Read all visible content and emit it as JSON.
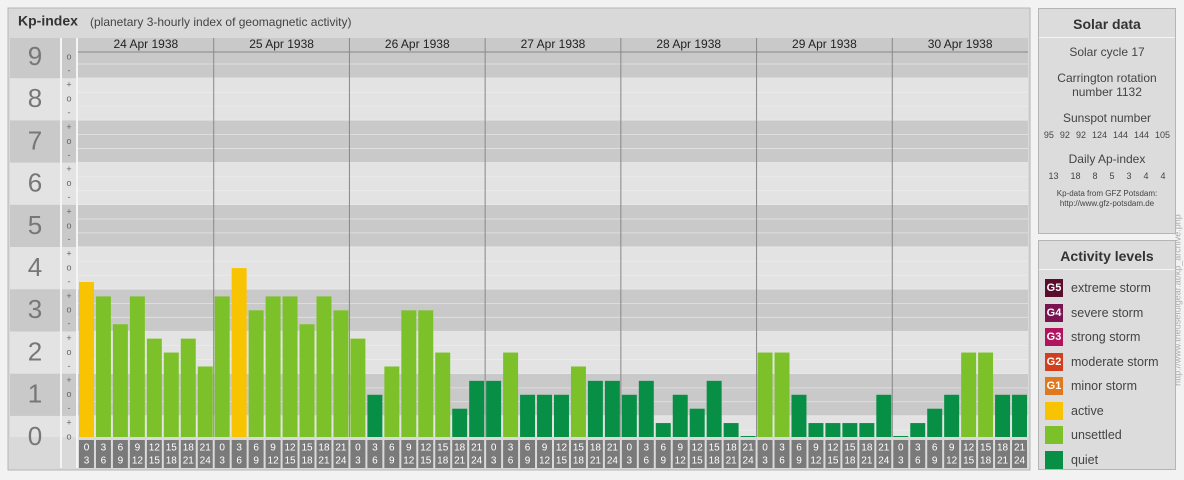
{
  "header": {
    "title": "Kp-index",
    "subtitle": "(planetary 3-hourly index of geomagnetic activity)"
  },
  "chart_data": {
    "type": "bar",
    "ylim": [
      0,
      9
    ],
    "yticks": [
      0,
      1,
      2,
      3,
      4,
      5,
      6,
      7,
      8,
      9
    ],
    "minor_yticks": [
      {
        "value": 0,
        "label": "o"
      },
      {
        "value": 0.33,
        "label": "+"
      },
      {
        "value": 0.67,
        "label": "-"
      },
      {
        "value": 1,
        "label": "o"
      },
      {
        "value": 1.33,
        "label": "+"
      },
      {
        "value": 1.67,
        "label": "-"
      },
      {
        "value": 2,
        "label": "o"
      },
      {
        "value": 2.33,
        "label": "+"
      },
      {
        "value": 2.67,
        "label": "-"
      },
      {
        "value": 3,
        "label": "o"
      },
      {
        "value": 3.33,
        "label": "+"
      },
      {
        "value": 3.67,
        "label": "-"
      },
      {
        "value": 4,
        "label": "o"
      },
      {
        "value": 4.33,
        "label": "+"
      },
      {
        "value": 4.67,
        "label": "-"
      },
      {
        "value": 5,
        "label": "o"
      },
      {
        "value": 5.33,
        "label": "+"
      },
      {
        "value": 5.67,
        "label": "-"
      },
      {
        "value": 6,
        "label": "o"
      },
      {
        "value": 6.33,
        "label": "+"
      },
      {
        "value": 6.67,
        "label": "-"
      },
      {
        "value": 7,
        "label": "o"
      },
      {
        "value": 7.33,
        "label": "+"
      },
      {
        "value": 7.67,
        "label": "-"
      },
      {
        "value": 8,
        "label": "o"
      },
      {
        "value": 8.33,
        "label": "+"
      },
      {
        "value": 8.67,
        "label": "-"
      },
      {
        "value": 9,
        "label": "o"
      }
    ],
    "intervals": [
      [
        0,
        3
      ],
      [
        3,
        6
      ],
      [
        6,
        9
      ],
      [
        9,
        12
      ],
      [
        12,
        15
      ],
      [
        15,
        18
      ],
      [
        18,
        21
      ],
      [
        21,
        24
      ]
    ],
    "days": [
      {
        "date": "24 Apr 1938",
        "values": [
          3.67,
          3.33,
          2.67,
          3.33,
          2.33,
          2,
          2.33,
          1.67
        ],
        "colors": [
          "#f8c300",
          "#7dc12a",
          "#7dc12a",
          "#7dc12a",
          "#7dc12a",
          "#7dc12a",
          "#7dc12a",
          "#7dc12a"
        ]
      },
      {
        "date": "25 Apr 1938",
        "values": [
          3.33,
          4,
          3,
          3.33,
          3.33,
          2.67,
          3.33,
          3
        ],
        "colors": [
          "#7dc12a",
          "#f8c300",
          "#7dc12a",
          "#7dc12a",
          "#7dc12a",
          "#7dc12a",
          "#7dc12a",
          "#7dc12a"
        ]
      },
      {
        "date": "26 Apr 1938",
        "values": [
          2.33,
          1,
          1.67,
          3,
          3,
          2,
          0.67,
          1.33
        ],
        "colors": [
          "#7dc12a",
          "#068f45",
          "#7dc12a",
          "#7dc12a",
          "#7dc12a",
          "#7dc12a",
          "#068f45",
          "#068f45"
        ]
      },
      {
        "date": "27 Apr 1938",
        "values": [
          1.33,
          2,
          1,
          1,
          1,
          1.67,
          1.33,
          1.33
        ],
        "colors": [
          "#068f45",
          "#7dc12a",
          "#068f45",
          "#068f45",
          "#068f45",
          "#7dc12a",
          "#068f45",
          "#068f45"
        ]
      },
      {
        "date": "28 Apr 1938",
        "values": [
          1,
          1.33,
          0.33,
          1,
          0.67,
          1.33,
          0.33,
          0
        ],
        "colors": [
          "#068f45",
          "#068f45",
          "#068f45",
          "#068f45",
          "#068f45",
          "#068f45",
          "#068f45",
          "#068f45"
        ]
      },
      {
        "date": "29 Apr 1938",
        "values": [
          2,
          2,
          1,
          0.33,
          0.33,
          0.33,
          0.33,
          1
        ],
        "colors": [
          "#7dc12a",
          "#7dc12a",
          "#068f45",
          "#068f45",
          "#068f45",
          "#068f45",
          "#068f45",
          "#068f45"
        ]
      },
      {
        "date": "30 Apr 1938",
        "values": [
          0,
          0.33,
          0.67,
          1,
          2,
          2,
          1,
          1
        ],
        "colors": [
          "#068f45",
          "#068f45",
          "#068f45",
          "#068f45",
          "#7dc12a",
          "#7dc12a",
          "#068f45",
          "#068f45"
        ]
      }
    ]
  },
  "solar_data": {
    "title": "Solar data",
    "cycle": "Solar cycle 17",
    "rotation": "Carrington rotation number 1132",
    "sunspot_title": "Sunspot number",
    "sunspots": [
      95,
      92,
      92,
      124,
      144,
      144,
      105
    ],
    "ap_title": "Daily Ap-index",
    "ap": [
      13,
      18,
      8,
      5,
      3,
      4,
      4
    ],
    "source": "Kp-data from GFZ Potsdam:",
    "source_url": "http://www.gfz-potsdam.de"
  },
  "activity_levels": {
    "title": "Activity levels",
    "levels": [
      {
        "badge": "G5",
        "label": "extreme storm",
        "color": "#5b0d2c"
      },
      {
        "badge": "G4",
        "label": "severe storm",
        "color": "#7a1350"
      },
      {
        "badge": "G3",
        "label": "strong storm",
        "color": "#b3135e"
      },
      {
        "badge": "G2",
        "label": "moderate storm",
        "color": "#d13f1f"
      },
      {
        "badge": "G1",
        "label": "minor storm",
        "color": "#e0781f"
      },
      {
        "label": "active",
        "color": "#f8c300"
      },
      {
        "label": "unsettled",
        "color": "#7dc12a"
      },
      {
        "label": "quiet",
        "color": "#068f45"
      }
    ]
  },
  "credit": "http://www.theusefulgear.at/kp_archive.php"
}
